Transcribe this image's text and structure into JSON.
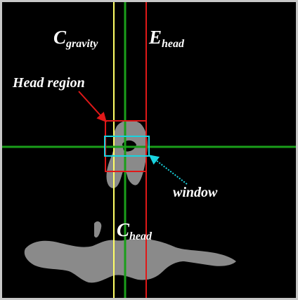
{
  "labels": {
    "c_gravity": {
      "main": "C",
      "sub": "gravity"
    },
    "e_head": {
      "main": "E",
      "sub": "head"
    },
    "c_head": {
      "main": "C",
      "sub": "head"
    },
    "head_region": "Head region",
    "window": "window"
  },
  "colors": {
    "background": "#000000",
    "frame": "#c8c8c8",
    "silhouette": "#8a8a8a",
    "c_gravity_line": "#ffff66",
    "c_head_line": "#1a9e1a",
    "e_head_line": "#e01818",
    "head_region_box": "#e01818",
    "window_box": "#19d3df",
    "label_text": "#ffffff"
  }
}
